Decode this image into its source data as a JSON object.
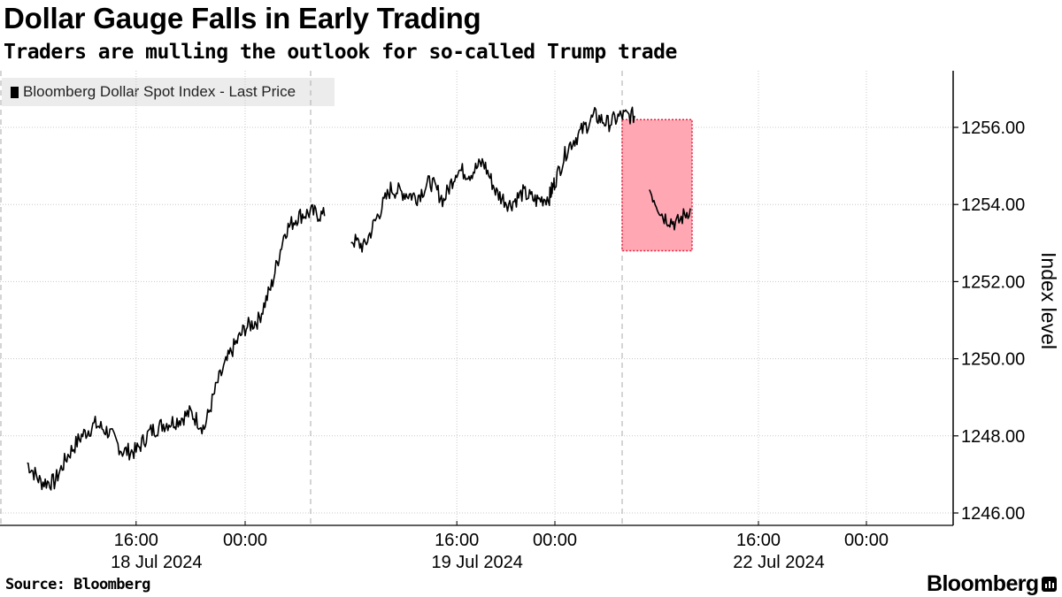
{
  "header": {
    "title": "Dollar Gauge Falls in Early Trading",
    "subtitle": "Traders are mulling the outlook for so-called Trump trade"
  },
  "footer": {
    "source": "Source: Bloomberg",
    "brand": "Bloomberg"
  },
  "colors": {
    "line": "#000000",
    "highlight_fill": "#ffa8b4",
    "highlight_border": "#e8203c",
    "grid": "#c8c8c8"
  },
  "chart_data": {
    "type": "line",
    "title": "Dollar Gauge Falls in Early Trading",
    "ylabel": "Index level",
    "ylim": [
      1245.7,
      1257.5
    ],
    "yticks": [
      1246,
      1248,
      1250,
      1252,
      1254,
      1256
    ],
    "ytick_labels": [
      "1246.00",
      "1248.00",
      "1250.00",
      "1252.00",
      "1254.00",
      "1256.00"
    ],
    "legend": "Bloomberg Dollar Spot Index - Last Price",
    "legend_position": "top-left",
    "grid": true,
    "x_time_ticks": [
      {
        "label": "16:00",
        "time": "2024-07-18 16:00"
      },
      {
        "label": "00:00",
        "time": "2024-07-19 00:00"
      },
      {
        "label": "16:00",
        "time": "2024-07-19 16:00"
      },
      {
        "label": "00:00",
        "time": "2024-07-20 00:00"
      },
      {
        "label": "16:00",
        "time": "2024-07-22 16:00"
      },
      {
        "label": "00:00",
        "time": "2024-07-23 00:00"
      }
    ],
    "x_date_labels": [
      {
        "label": "18 Jul 2024",
        "time": "2024-07-18 16:00"
      },
      {
        "label": "19 Jul 2024",
        "time": "2024-07-19 16:00"
      },
      {
        "label": "22 Jul 2024",
        "time": "2024-07-22 16:00"
      }
    ],
    "series": [
      {
        "name": "Bloomberg Dollar Spot Index - Last Price",
        "segments": [
          {
            "x": [
              "2024-07-18 08:00",
              "2024-07-18 09:00",
              "2024-07-18 10:00",
              "2024-07-18 11:00",
              "2024-07-18 12:00",
              "2024-07-18 13:00",
              "2024-07-18 14:00",
              "2024-07-18 15:00",
              "2024-07-18 16:00",
              "2024-07-18 17:00",
              "2024-07-18 18:00",
              "2024-07-18 19:00",
              "2024-07-18 20:00",
              "2024-07-18 21:00",
              "2024-07-18 22:00",
              "2024-07-18 23:00",
              "2024-07-19 00:00",
              "2024-07-19 01:00",
              "2024-07-19 02:00",
              "2024-07-19 03:00",
              "2024-07-19 04:00",
              "2024-07-19 05:00",
              "2024-07-19 06:00"
            ],
            "y": [
              1247.3,
              1246.8,
              1246.8,
              1247.5,
              1248.0,
              1248.3,
              1248.1,
              1247.6,
              1247.6,
              1248.1,
              1248.3,
              1248.4,
              1248.6,
              1248.2,
              1249.4,
              1250.2,
              1250.8,
              1251.0,
              1251.9,
              1253.3,
              1253.7,
              1253.8,
              1253.7
            ]
          },
          {
            "x": [
              "2024-07-19 08:00",
              "2024-07-19 09:00",
              "2024-07-19 10:00",
              "2024-07-19 11:00",
              "2024-07-19 12:00",
              "2024-07-19 13:00",
              "2024-07-19 14:00",
              "2024-07-19 15:00",
              "2024-07-19 16:00",
              "2024-07-19 17:00",
              "2024-07-19 18:00",
              "2024-07-19 19:00",
              "2024-07-19 20:00",
              "2024-07-19 21:00",
              "2024-07-19 22:00",
              "2024-07-19 23:00",
              "2024-07-20 00:00",
              "2024-07-20 01:00",
              "2024-07-20 02:00",
              "2024-07-20 03:00",
              "2024-07-20 04:00",
              "2024-07-20 05:00",
              "2024-07-20 06:00"
            ],
            "y": [
              1253.1,
              1252.9,
              1253.7,
              1254.4,
              1254.3,
              1254.2,
              1254.6,
              1254.1,
              1254.9,
              1254.8,
              1255.1,
              1254.3,
              1254.0,
              1254.3,
              1254.1,
              1254.2,
              1254.6,
              1255.5,
              1255.9,
              1256.3,
              1256.1,
              1256.3,
              1256.3
            ]
          },
          {
            "x": [
              "2024-07-22 08:00",
              "2024-07-22 09:00",
              "2024-07-22 10:00",
              "2024-07-22 11:00"
            ],
            "y": [
              1254.4,
              1253.7,
              1253.5,
              1253.9
            ]
          }
        ]
      }
    ],
    "highlight_region": {
      "x_start": "2024-07-22 06:00",
      "x_end": "2024-07-22 13:00",
      "y_low": 1252.8,
      "y_high": 1256.2
    }
  }
}
